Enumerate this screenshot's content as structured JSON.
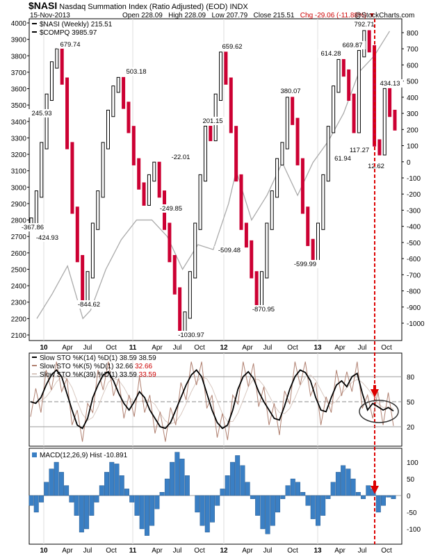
{
  "header": {
    "symbol": "$NASI",
    "description": "Nasdaq Summation Index (Ratio Adjusted) (EOD)",
    "exchange": "INDX",
    "date": "15-Nov-2013",
    "open": "Open 228.09",
    "high": "High 228.09",
    "low": "Low 207.79",
    "close": "Close 215.51",
    "change": "Chg -29.06 (-11.88%)",
    "credit": "@StockCharts.com"
  },
  "chart_data": [
    {
      "type": "line",
      "title": "$NASI Nasdaq Summation Index (Ratio Adjusted) (EOD) INDX",
      "series": [
        {
          "name": "$NASI (Weekly) 215.51",
          "style": "ohlc",
          "color": "#cc0033"
        },
        {
          "name": "$COMPQ 3985.97",
          "color": "#aaaaaa",
          "x": [
            "2010-01",
            "2010-03",
            "2010-05",
            "2010-07",
            "2010-08",
            "2010-10",
            "2010-12",
            "2011-02",
            "2011-04",
            "2011-06",
            "2011-08",
            "2011-10",
            "2011-12",
            "2012-02",
            "2012-03",
            "2012-05",
            "2012-07",
            "2012-09",
            "2012-11",
            "2013-01",
            "2013-03",
            "2013-05",
            "2013-07",
            "2013-09",
            "2013-11"
          ],
          "values": [
            2200,
            2350,
            2520,
            2200,
            2250,
            2500,
            2680,
            2800,
            2800,
            2700,
            2500,
            2650,
            2620,
            2900,
            3100,
            2800,
            2950,
            3150,
            2950,
            3150,
            3280,
            3450,
            3700,
            3800,
            3950
          ]
        }
      ],
      "x_ticks": [
        "10",
        "Apr",
        "Jul",
        "Oct",
        "11",
        "Apr",
        "Jul",
        "Oct",
        "12",
        "Apr",
        "Jul",
        "Oct",
        "13",
        "Apr",
        "Jul",
        "Oct"
      ],
      "y_left_ticks": [
        2100,
        2200,
        2300,
        2400,
        2500,
        2600,
        2700,
        2800,
        2900,
        3000,
        3100,
        3200,
        3300,
        3400,
        3500,
        3600,
        3700,
        3800,
        3900,
        4000
      ],
      "y_right_ticks": [
        800,
        700,
        600,
        500,
        400,
        300,
        200,
        100,
        0,
        -100,
        -200,
        -300,
        -400,
        -500,
        -600,
        -700,
        -800,
        -900,
        -1000
      ],
      "nasi_weekly": [
        -368,
        -200,
        100,
        400,
        600,
        680,
        500,
        100,
        -300,
        -600,
        -845,
        -700,
        -400,
        -200,
        100,
        300,
        450,
        503,
        350,
        200,
        0,
        -150,
        -250,
        -100,
        -22,
        -200,
        -400,
        -600,
        -800,
        -1031,
        -950,
        -700,
        -400,
        -100,
        201,
        150,
        400,
        660,
        500,
        200,
        -100,
        -400,
        -509,
        -700,
        -871,
        -700,
        -400,
        -200,
        0,
        100,
        380,
        250,
        0,
        -300,
        -500,
        -600,
        -400,
        -100,
        200,
        450,
        614,
        550,
        400,
        200,
        670,
        793,
        700,
        117,
        62,
        434,
        300,
        216
      ],
      "annotations": [
        {
          "text": "245.93"
        },
        {
          "text": "679.74"
        },
        {
          "text": "503.18"
        },
        {
          "text": "-367.86"
        },
        {
          "text": "-424.93"
        },
        {
          "text": "-844.62"
        },
        {
          "text": "-249.85"
        },
        {
          "text": "-22.01"
        },
        {
          "text": "201.15"
        },
        {
          "text": "659.62"
        },
        {
          "text": "-1030.97"
        },
        {
          "text": "-509.48"
        },
        {
          "text": "-870.95"
        },
        {
          "text": "380.07"
        },
        {
          "text": "-599.99"
        },
        {
          "text": "614.28"
        },
        {
          "text": "669.87"
        },
        {
          "text": "792.71"
        },
        {
          "text": "117.27"
        },
        {
          "text": "61.94"
        },
        {
          "text": "434.13"
        },
        {
          "text": "12.62"
        }
      ]
    },
    {
      "type": "line",
      "series": [
        {
          "name": "Slow STO %K(14) %D(1) 38.59, 38.59",
          "color": "#000000"
        },
        {
          "name": "Slow STO %K(5) %D(1) 32.66, 32.66",
          "color": "#b08070"
        },
        {
          "name": "Slow STO %K(39) %D(1) 33.59, 33.59",
          "color": "#d8c8c0"
        }
      ],
      "k14": [
        50,
        48,
        55,
        70,
        82,
        88,
        80,
        60,
        40,
        22,
        18,
        30,
        55,
        70,
        82,
        86,
        75,
        60,
        48,
        40,
        50,
        62,
        55,
        40,
        30,
        20,
        18,
        25,
        40,
        55,
        70,
        82,
        88,
        80,
        60,
        40,
        25,
        18,
        22,
        40,
        65,
        80,
        86,
        78,
        62,
        50,
        40,
        30,
        28,
        45,
        65,
        80,
        88,
        85,
        75,
        55,
        40,
        38,
        55,
        70,
        75,
        68,
        80,
        84,
        60,
        40,
        48,
        44,
        40,
        43,
        39
      ],
      "y_ticks": [
        80,
        50,
        20
      ],
      "ylim": [
        0,
        100
      ],
      "labels": {
        "k14": "Slow STO %K(14) %D(1) 38.59",
        "k14_val": "38.59",
        "k5": "Slow STO %K(5) %D(1) 32.66",
        "k5_val": "32.66",
        "k39": "Slow STO %K(39) %D(1) 33.59",
        "k39_val": "33.59"
      }
    },
    {
      "type": "bar",
      "series": [
        {
          "name": "MACD(12,26,9) Hist -10.891",
          "color": "#3a7fc4"
        }
      ],
      "label": "MACD(12,26,9) Hist -10.891",
      "values": [
        -30,
        -50,
        -20,
        40,
        80,
        100,
        70,
        30,
        -20,
        -60,
        -110,
        -100,
        -60,
        -20,
        30,
        70,
        100,
        95,
        60,
        20,
        -20,
        -60,
        -100,
        -120,
        -90,
        -40,
        10,
        50,
        100,
        130,
        110,
        60,
        0,
        -50,
        -90,
        -110,
        -80,
        -30,
        20,
        60,
        100,
        120,
        90,
        40,
        -10,
        -60,
        -100,
        -115,
        -90,
        -50,
        -10,
        30,
        50,
        40,
        10,
        -30,
        -70,
        -90,
        -60,
        -10,
        40,
        70,
        90,
        80,
        50,
        10,
        -10,
        30,
        20,
        -50,
        -30,
        -5,
        -10
      ],
      "y_ticks": [
        100,
        50,
        0,
        -50,
        -100
      ]
    }
  ]
}
